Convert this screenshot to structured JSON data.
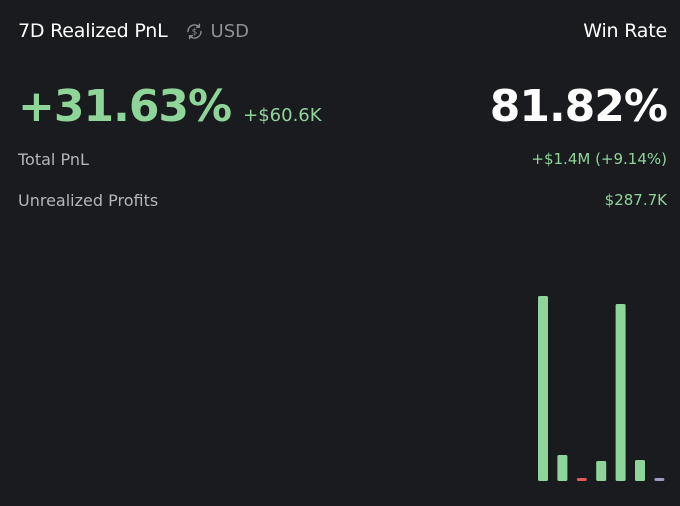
{
  "header": {
    "title": "7D Realized PnL",
    "currency_icon": "dollar-cycle-icon",
    "currency_label": "USD",
    "win_rate_label": "Win Rate"
  },
  "metrics": {
    "realized_pnl_percent": "+31.63%",
    "realized_pnl_amount": "+$60.6K",
    "win_rate_value": "81.82%"
  },
  "stats": {
    "total_pnl_label": "Total PnL",
    "total_pnl_value": "+$1.4M (+9.14%)",
    "unrealized_label": "Unrealized Profits",
    "unrealized_value": "$287.7K"
  },
  "colors": {
    "positive": "#8fd59a",
    "negative": "#e05a5a",
    "neutral": "#9a9cc0",
    "background": "#1a1b1e"
  },
  "chart_data": {
    "type": "bar",
    "series": [
      {
        "values": [
          185,
          26,
          -3,
          20,
          177,
          21,
          3
        ],
        "signs": [
          "positive",
          "positive",
          "negative",
          "positive",
          "positive",
          "positive",
          "neutral"
        ]
      }
    ],
    "grid": false,
    "legend": "none"
  }
}
